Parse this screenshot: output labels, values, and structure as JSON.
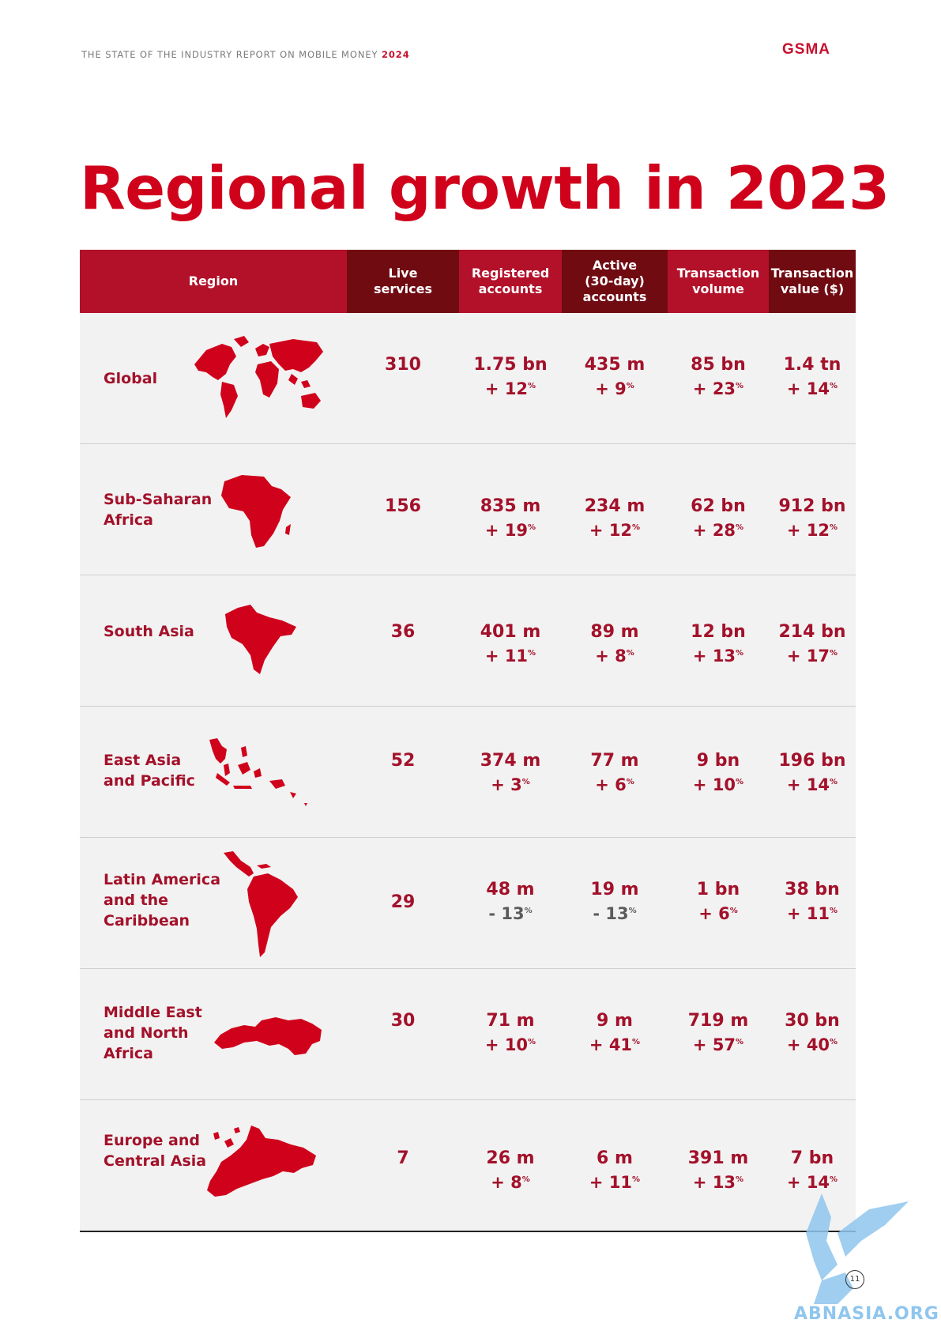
{
  "header": {
    "report_title": "THE STATE OF THE INDUSTRY REPORT ON MOBILE MONEY",
    "year": "2024",
    "logo": "GSMA"
  },
  "title": "Regional growth in 2023",
  "table": {
    "columns": [
      "Region",
      "Live\nservices",
      "Registered\naccounts",
      "Active\n(30-day)\naccounts",
      "Transaction\nvolume",
      "Transaction\nvalue ($)"
    ],
    "rows": [
      {
        "region": "Global",
        "map_icon": "world-map-icon",
        "live": "310",
        "registered": "1.75 bn",
        "registered_chg": "+ 12",
        "active": "435 m",
        "active_chg": "+ 9",
        "volume": "85 bn",
        "volume_chg": "+ 23",
        "value": "1.4 tn",
        "value_chg": "+ 14"
      },
      {
        "region": "Sub-Saharan\nAfrica",
        "map_icon": "africa-map-icon",
        "live": "156",
        "registered": "835 m",
        "registered_chg": "+ 19",
        "active": "234 m",
        "active_chg": "+ 12",
        "volume": "62 bn",
        "volume_chg": "+ 28",
        "value": "912 bn",
        "value_chg": "+ 12"
      },
      {
        "region": "South Asia",
        "map_icon": "south-asia-map-icon",
        "live": "36",
        "registered": "401 m",
        "registered_chg": "+ 11",
        "active": "89 m",
        "active_chg": "+ 8",
        "volume": "12 bn",
        "volume_chg": "+ 13",
        "value": "214 bn",
        "value_chg": "+ 17"
      },
      {
        "region": "East Asia\nand Pacific",
        "map_icon": "east-asia-pacific-map-icon",
        "live": "52",
        "registered": "374 m",
        "registered_chg": "+ 3",
        "active": "77 m",
        "active_chg": "+ 6",
        "volume": "9 bn",
        "volume_chg": "+ 10",
        "value": "196 bn",
        "value_chg": "+ 14"
      },
      {
        "region": "Latin America\nand the\nCaribbean",
        "map_icon": "latin-america-map-icon",
        "live": "29",
        "registered": "48 m",
        "registered_chg": "- 13",
        "active": "19 m",
        "active_chg": "- 13",
        "volume": "1 bn",
        "volume_chg": "+ 6",
        "value": "38 bn",
        "value_chg": "+ 11"
      },
      {
        "region": "Middle East\nand North\nAfrica",
        "map_icon": "mena-map-icon",
        "live": "30",
        "registered": "71 m",
        "registered_chg": "+ 10",
        "active": "9 m",
        "active_chg": "+ 41",
        "volume": "719 m",
        "volume_chg": "+ 57",
        "value": "30 bn",
        "value_chg": "+ 40"
      },
      {
        "region": "Europe and\nCentral Asia",
        "map_icon": "europe-central-asia-map-icon",
        "live": "7",
        "registered": "26 m",
        "registered_chg": "+ 8",
        "active": "6 m",
        "active_chg": "+ 11",
        "volume": "391 m",
        "volume_chg": "+ 13",
        "value": "7 bn",
        "value_chg": "+ 14"
      }
    ],
    "percent_sign": "%"
  },
  "page_number": "11",
  "watermark": "ABNASIA.ORG",
  "colors": {
    "brand_red": "#d0021b",
    "dark_red": "#700b12",
    "header_red": "#b3112a",
    "row_bg": "#f2f2f2"
  }
}
